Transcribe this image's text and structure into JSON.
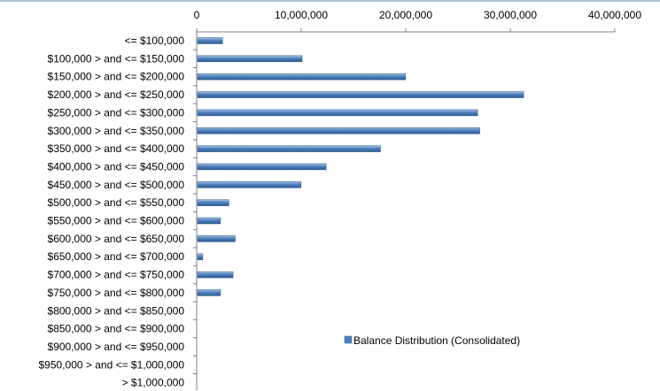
{
  "chart_data": {
    "type": "bar",
    "orientation": "horizontal",
    "categories": [
      "<= $100,000",
      "$100,000 > and <= $150,000",
      "$150,000 > and <= $200,000",
      "$200,000 > and <= $250,000",
      "$250,000 > and <= $300,000",
      "$300,000 > and <= $350,000",
      "$350,000 > and <= $400,000",
      "$400,000 > and <= $450,000",
      "$450,000 > and <= $500,000",
      "$500,000 > and <= $550,000",
      "$550,000 > and <= $600,000",
      "$600,000 > and <= $650,000",
      "$650,000 > and <= $700,000",
      "$700,000 > and <= $750,000",
      "$750,000 > and <= $800,000",
      "$800,000 > and <= $850,000",
      "$850,000 > and <= $900,000",
      "$900,000 > and <= $950,000",
      "$950,000 > and <= $1,000,000",
      "> $1,000,000"
    ],
    "series": [
      {
        "name": "Balance Distribution (Consolidated)",
        "color": "#4f81bd",
        "values": [
          2400000,
          10000000,
          19900000,
          31200000,
          26800000,
          27000000,
          17500000,
          12300000,
          9900000,
          3000000,
          2200000,
          3600000,
          500000,
          3400000,
          2200000,
          0,
          0,
          0,
          0,
          0
        ]
      }
    ],
    "xaxis": {
      "position": "top",
      "ticks": [
        0,
        10000000,
        20000000,
        30000000,
        40000000
      ],
      "tick_labels": [
        "0",
        "10,000,000",
        "20,000,000",
        "30,000,000",
        "40,000,000"
      ],
      "range": [
        0,
        40000000
      ]
    },
    "title": "",
    "xlabel": "",
    "ylabel": "",
    "grid": false,
    "legend_position": "bottom-right"
  }
}
